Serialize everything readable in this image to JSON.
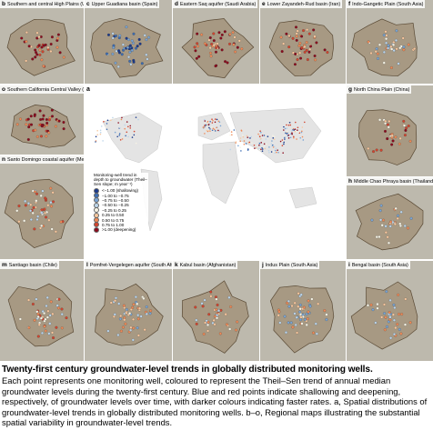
{
  "figure": {
    "map": {
      "label": "a",
      "legend": {
        "title": "Monitoring-well trend in depth to groundwater (Theil–Sen slope; m year⁻¹)",
        "items": [
          "<−1.00 (shallowing)",
          "−1.00 to −0.75",
          "−0.75 to −0.50",
          "−0.50 to −0.25",
          "−0.25 to 0.25",
          "0.25 to 0.50",
          "0.50 to 0.75",
          "0.75 to 1.00",
          ">1.00 (deepening)"
        ],
        "colors": [
          "#1b3a8c",
          "#3d6db3",
          "#79a4d4",
          "#bcd5ea",
          "#f6f3e4",
          "#f7c79e",
          "#ee8a58",
          "#d2452f",
          "#8b0b1d"
        ]
      }
    },
    "panels": [
      {
        "label": "b",
        "title": "Southern and central High Plains (USA)"
      },
      {
        "label": "c",
        "title": "Upper Guadiana basin (Spain)"
      },
      {
        "label": "d",
        "title": "Eastern Saq aquifer (Saudi Arabia)"
      },
      {
        "label": "e",
        "title": "Lower Zayandeh-Rud basin (Iran)"
      },
      {
        "label": "f",
        "title": "Indo-Gangetic Plain (South Asia)"
      },
      {
        "label": "o",
        "title": "Southern California Central Valley (USA)"
      },
      {
        "label": "g",
        "title": "North China Plain (China)"
      },
      {
        "label": "n",
        "title": "Santo Domingo coastal aquifer (Mexico)"
      },
      {
        "label": "h",
        "title": "Middle Chao Phraya basin (Thailand)"
      },
      {
        "label": "m",
        "title": "Santiago basin (Chile)"
      },
      {
        "label": "l",
        "title": "Pomfret-Vergelegen aquifer (South Africa)"
      },
      {
        "label": "k",
        "title": "Kabul basin (Afghanistan)"
      },
      {
        "label": "j",
        "title": "Indus Plain (South Asia)"
      },
      {
        "label": "i",
        "title": "Bengal basin (South Asia)"
      }
    ]
  },
  "caption": {
    "title": "Twenty-first century groundwater-level trends in globally distributed monitoring wells.",
    "body": "Each point represents one monitoring well, coloured to represent the Theil–Sen trend of annual median groundwater levels during the twenty-first century. Blue and red points indicate shallowing and deepening, respectively, of groundwater levels over time, with darker colours indicating faster rates. a, Spatial distributions of groundwater-level trends in globally distributed monitoring wells. b–o, Regional maps illustrating the substantial spatial variability in groundwater-level trends."
  }
}
